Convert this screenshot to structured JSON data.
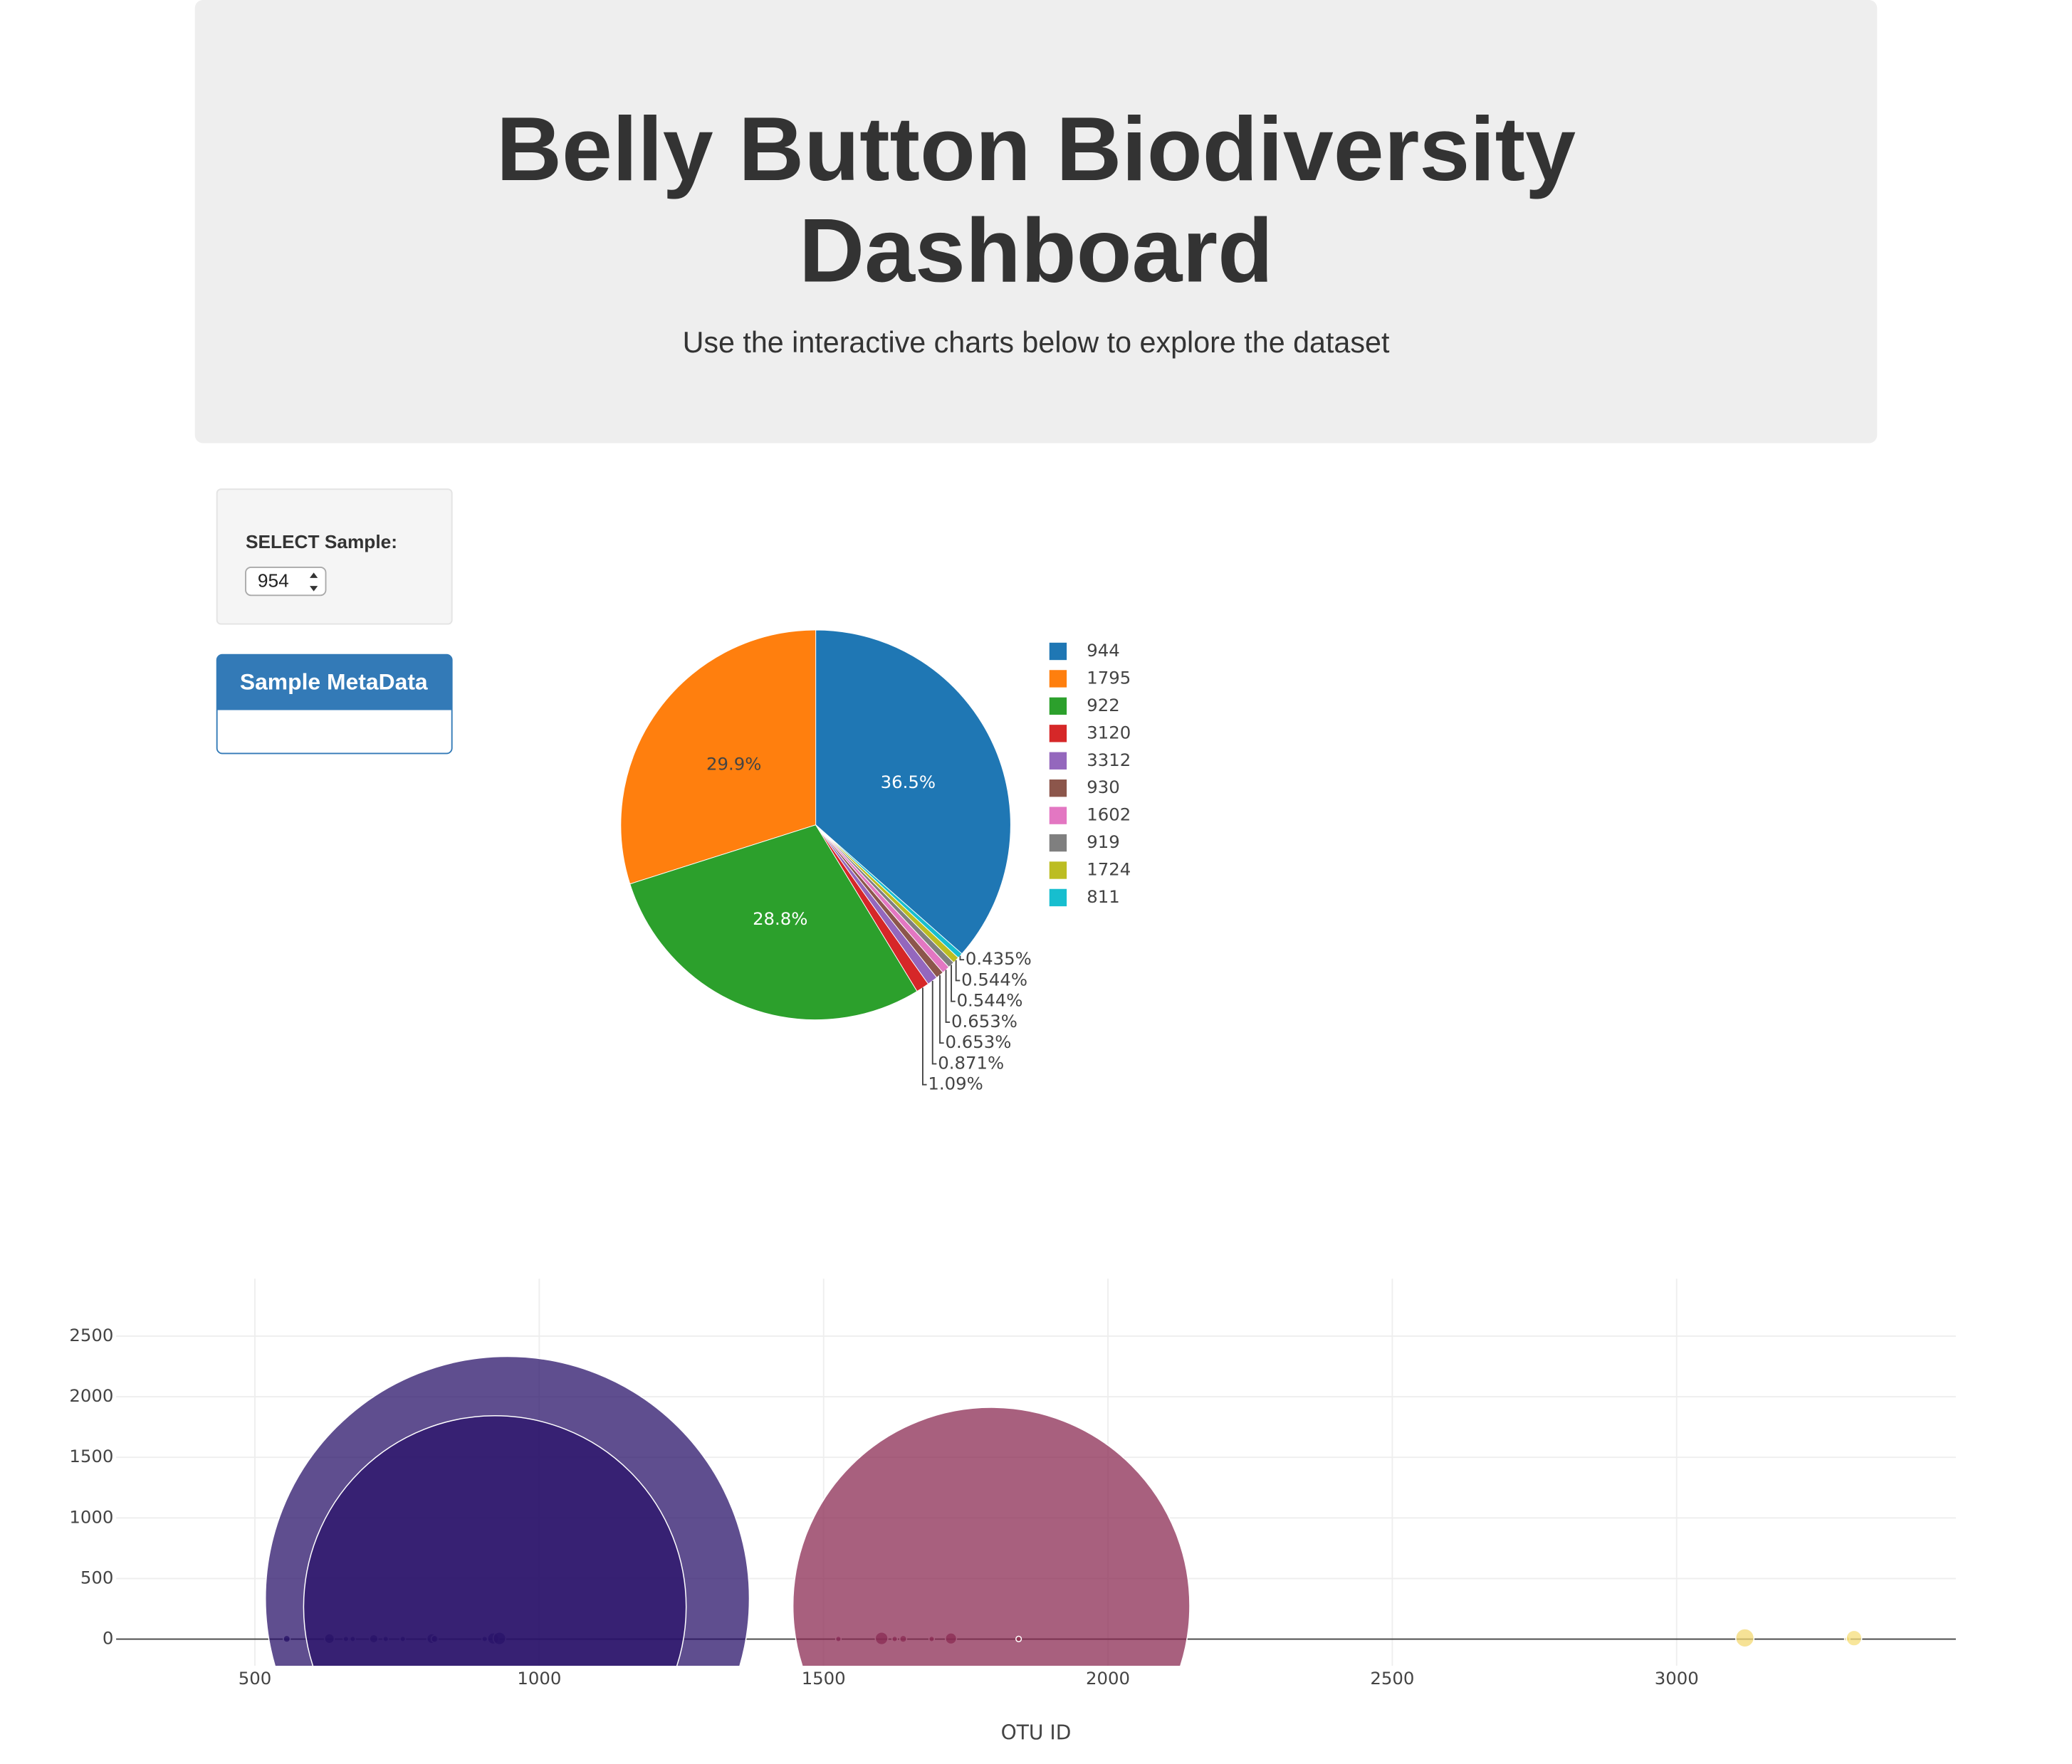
{
  "header": {
    "title": "Belly Button Biodiversity Dashboard",
    "subtitle": "Use the interactive charts below to explore the dataset"
  },
  "selector": {
    "label": "SELECT Sample:",
    "value": "954"
  },
  "metadata": {
    "title": "Sample MetaData"
  },
  "chart_data": [
    {
      "type": "pie",
      "categories": [
        "944",
        "1795",
        "922",
        "3120",
        "3312",
        "930",
        "1602",
        "919",
        "1724",
        "811"
      ],
      "values": [
        36.5,
        29.9,
        28.8,
        1.09,
        0.871,
        0.653,
        0.653,
        0.544,
        0.544,
        0.435
      ],
      "value_labels": [
        "36.5%",
        "29.9%",
        "28.8%",
        "1.09%",
        "0.871%",
        "0.653%",
        "0.653%",
        "0.544%",
        "0.544%",
        "0.435%"
      ],
      "colors": [
        "#1f77b4",
        "#ff7f0e",
        "#2ca02c",
        "#d62728",
        "#9467bd",
        "#8c564b",
        "#e377c2",
        "#7f7f7f",
        "#bcbd22",
        "#17becf"
      ],
      "legend": "right"
    },
    {
      "type": "bubble",
      "x": [
        556,
        631,
        660,
        672,
        709,
        730,
        760,
        811,
        816,
        904,
        919,
        930,
        944,
        922,
        1526,
        1602,
        1625,
        1640,
        1690,
        1724,
        1795,
        1843,
        3120,
        3300,
        3312
      ],
      "values": [
        2,
        4,
        1,
        1,
        3,
        1,
        1,
        4,
        2,
        1,
        5,
        6,
        336,
        265,
        1,
        6,
        1,
        2,
        1,
        5,
        275,
        1,
        10,
        1,
        8
      ],
      "colors": [
        "#1e0a5a",
        "#220c5e",
        "#240d60",
        "#250d61",
        "#270e62",
        "#280f63",
        "#2a1065",
        "#2c1167",
        "#2c1167",
        "#2e1268",
        "#2a1369",
        "#2a1369",
        "#2a1369",
        "#2a1369",
        "#7a2658",
        "#862a55",
        "#882a55",
        "#8a2b54",
        "#8c2c53",
        "#8b2b53",
        "#8b2b53",
        "#93304f",
        "#f3d873",
        "#f5dc78",
        "#f5dd7a"
      ],
      "opacity": 0.75,
      "xlim": [
        256,
        3491
      ],
      "ylim": [
        -220,
        2974
      ],
      "xticks": [
        500,
        1000,
        1500,
        2000,
        2500,
        3000
      ],
      "yticks": [
        0,
        500,
        1000,
        1500,
        2000,
        2500
      ],
      "xlabel": "OTU ID",
      "grid": true
    }
  ]
}
